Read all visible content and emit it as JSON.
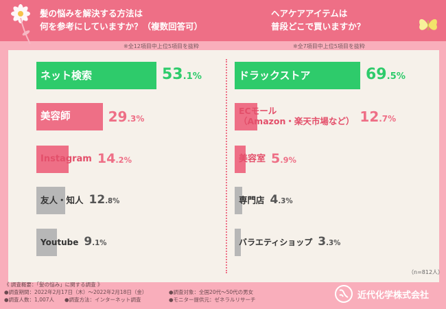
{
  "header": {
    "left_question": [
      "髪の悩みを解決する方法は",
      "何を参考にしていますか？（複数回答可）"
    ],
    "right_question": [
      "ヘアケアアイテムは",
      "普段どこで買いますか？"
    ],
    "left_note": "※全12項目中上位5項目を抜粋",
    "right_note": "※全7項目中上位5項目を抜粋"
  },
  "chart_data": [
    {
      "type": "bar",
      "orientation": "horizontal",
      "categories": [
        "ネット検索",
        "美容師",
        "Instagram",
        "友人・知人",
        "Youtube"
      ],
      "values": [
        53.1,
        29.3,
        14.2,
        12.8,
        9.1
      ],
      "value_labels": [
        {
          "int": "53",
          "dec": ".1%"
        },
        {
          "int": "29",
          "dec": ".3%"
        },
        {
          "int": "14",
          "dec": ".2%"
        },
        {
          "int": "12",
          "dec": ".8%"
        },
        {
          "int": "9",
          "dec": ".1%"
        }
      ],
      "colors": [
        "#2ecb6b",
        "#ee6f86",
        "#ee6f86",
        "#b7b7b7",
        "#b7b7b7"
      ]
    },
    {
      "type": "bar",
      "orientation": "horizontal",
      "categories": [
        "ドラックストア",
        "ECモール（Amazon・楽天市場など）",
        "美容室",
        "専門店",
        "バラエティショップ"
      ],
      "category_lines": [
        [
          "ドラックストア"
        ],
        [
          "ECモール",
          "（Amazon・楽天市場など）"
        ],
        [
          "美容室"
        ],
        [
          "専門店"
        ],
        [
          "バラエティショップ"
        ]
      ],
      "values": [
        69.5,
        12.7,
        5.9,
        4.3,
        3.3
      ],
      "value_labels": [
        {
          "int": "69",
          "dec": ".5%"
        },
        {
          "int": "12",
          "dec": ".7%"
        },
        {
          "int": "5",
          "dec": ".9%"
        },
        {
          "int": "4",
          "dec": ".3%"
        },
        {
          "int": "3",
          "dec": ".3%"
        }
      ],
      "colors": [
        "#2ecb6b",
        "#ee6f86",
        "#ee6f86",
        "#b7b7b7",
        "#b7b7b7"
      ]
    }
  ],
  "n_note": "（n=812人）",
  "survey": {
    "title": "《 調査概要：「髪の悩み」に関する調査 》",
    "rows": [
      [
        "●調査期間：2022年2月17日（木）～2022年2月18日（金）",
        "●調査対象：全国20代～50代の男女"
      ],
      [
        "●調査人数：1,007人　　●調査方法：インターネット調査",
        "●モニター提供元：ゼネラルリサーチ"
      ]
    ]
  },
  "company": "近代化学株式会社",
  "colors": {
    "header": "#ee6f86",
    "background": "#f9aebb",
    "panel": "#f6f1ea",
    "green": "#2ecb6b",
    "pink": "#ee6f86",
    "gray": "#b7b7b7"
  }
}
